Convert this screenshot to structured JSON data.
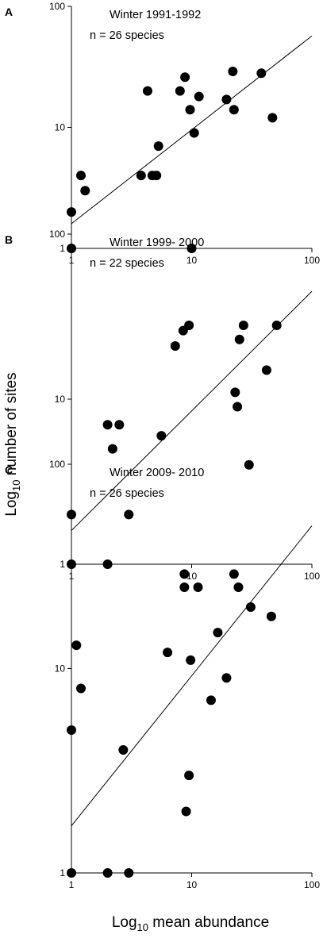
{
  "figure": {
    "xlabel_prefix": "Log",
    "xlabel_sub": "10",
    "xlabel_rest": " mean abundance",
    "ylabel_prefix": "Log",
    "ylabel_sub": "10",
    "ylabel_rest": " number of sites"
  },
  "chart_data": [
    {
      "type": "scatter",
      "panel_label": "A",
      "annotations": [
        "Winter 1991-1992",
        "n = 26 species"
      ],
      "xscale": "log",
      "yscale": "log",
      "xlim": [
        1,
        100
      ],
      "ylim": [
        1,
        100
      ],
      "xticks": [
        "1",
        "10",
        "100"
      ],
      "yticks": [
        "1",
        "10",
        "100"
      ],
      "grid": false,
      "trendline": {
        "x": [
          1,
          100
        ],
        "y": [
          1.6,
          57
        ]
      },
      "points": [
        {
          "x": 1,
          "y": 1
        },
        {
          "x": 1,
          "y": 2
        },
        {
          "x": 1.2,
          "y": 4
        },
        {
          "x": 1.3,
          "y": 3
        },
        {
          "x": 3.8,
          "y": 4
        },
        {
          "x": 4.3,
          "y": 20
        },
        {
          "x": 4.7,
          "y": 4
        },
        {
          "x": 5.1,
          "y": 4
        },
        {
          "x": 5.3,
          "y": 7
        },
        {
          "x": 8,
          "y": 20
        },
        {
          "x": 8.8,
          "y": 26
        },
        {
          "x": 9.7,
          "y": 14
        },
        {
          "x": 10,
          "y": 1
        },
        {
          "x": 10.5,
          "y": 9
        },
        {
          "x": 11.5,
          "y": 18
        },
        {
          "x": 19.5,
          "y": 17
        },
        {
          "x": 22,
          "y": 29
        },
        {
          "x": 22.5,
          "y": 14
        },
        {
          "x": 38,
          "y": 28
        },
        {
          "x": 47,
          "y": 12
        }
      ]
    },
    {
      "type": "scatter",
      "panel_label": "B",
      "annotations": [
        "Winter 1999- 2000",
        "n = 22 species"
      ],
      "xscale": "log",
      "yscale": "log",
      "xlim": [
        1,
        100
      ],
      "ylim": [
        1,
        100
      ],
      "xticks": [
        "1",
        "10",
        "100"
      ],
      "yticks": [
        "1",
        "10",
        "100"
      ],
      "grid": false,
      "trendline": {
        "x": [
          1,
          100
        ],
        "y": [
          1.6,
          45
        ]
      },
      "points": [
        {
          "x": 1,
          "y": 1
        },
        {
          "x": 1,
          "y": 2
        },
        {
          "x": 2,
          "y": 1
        },
        {
          "x": 2,
          "y": 7
        },
        {
          "x": 2.2,
          "y": 5
        },
        {
          "x": 2.5,
          "y": 7
        },
        {
          "x": 3,
          "y": 2
        },
        {
          "x": 5.6,
          "y": 6
        },
        {
          "x": 7.3,
          "y": 21
        },
        {
          "x": 8.5,
          "y": 26
        },
        {
          "x": 9.5,
          "y": 28
        },
        {
          "x": 23,
          "y": 11
        },
        {
          "x": 24,
          "y": 9
        },
        {
          "x": 25,
          "y": 23
        },
        {
          "x": 27,
          "y": 28
        },
        {
          "x": 30,
          "y": 4
        },
        {
          "x": 42,
          "y": 15
        },
        {
          "x": 51,
          "y": 28
        }
      ]
    },
    {
      "type": "scatter",
      "panel_label": "C",
      "annotations": [
        "Winter 2009- 2010",
        "n = 26 species"
      ],
      "xscale": "log",
      "yscale": "log",
      "xlim": [
        1,
        100
      ],
      "ylim": [
        1,
        100
      ],
      "xticks": [
        "1",
        "10",
        "100"
      ],
      "yticks": [
        "1",
        "10",
        "100"
      ],
      "grid": false,
      "trendline": {
        "x": [
          1,
          100
        ],
        "y": [
          1.7,
          50
        ]
      },
      "points": [
        {
          "x": 1,
          "y": 1
        },
        {
          "x": 1,
          "y": 5
        },
        {
          "x": 1.1,
          "y": 13
        },
        {
          "x": 1.2,
          "y": 8
        },
        {
          "x": 2,
          "y": 1
        },
        {
          "x": 2.7,
          "y": 4
        },
        {
          "x": 3,
          "y": 1
        },
        {
          "x": 6.3,
          "y": 12
        },
        {
          "x": 8.7,
          "y": 29
        },
        {
          "x": 8.7,
          "y": 25
        },
        {
          "x": 9,
          "y": 2
        },
        {
          "x": 9.5,
          "y": 3
        },
        {
          "x": 9.8,
          "y": 11
        },
        {
          "x": 11.3,
          "y": 25
        },
        {
          "x": 14.5,
          "y": 7
        },
        {
          "x": 16.5,
          "y": 15
        },
        {
          "x": 19.5,
          "y": 9
        },
        {
          "x": 22.5,
          "y": 29
        },
        {
          "x": 24.5,
          "y": 25
        },
        {
          "x": 31,
          "y": 20
        },
        {
          "x": 46,
          "y": 18
        }
      ]
    }
  ]
}
